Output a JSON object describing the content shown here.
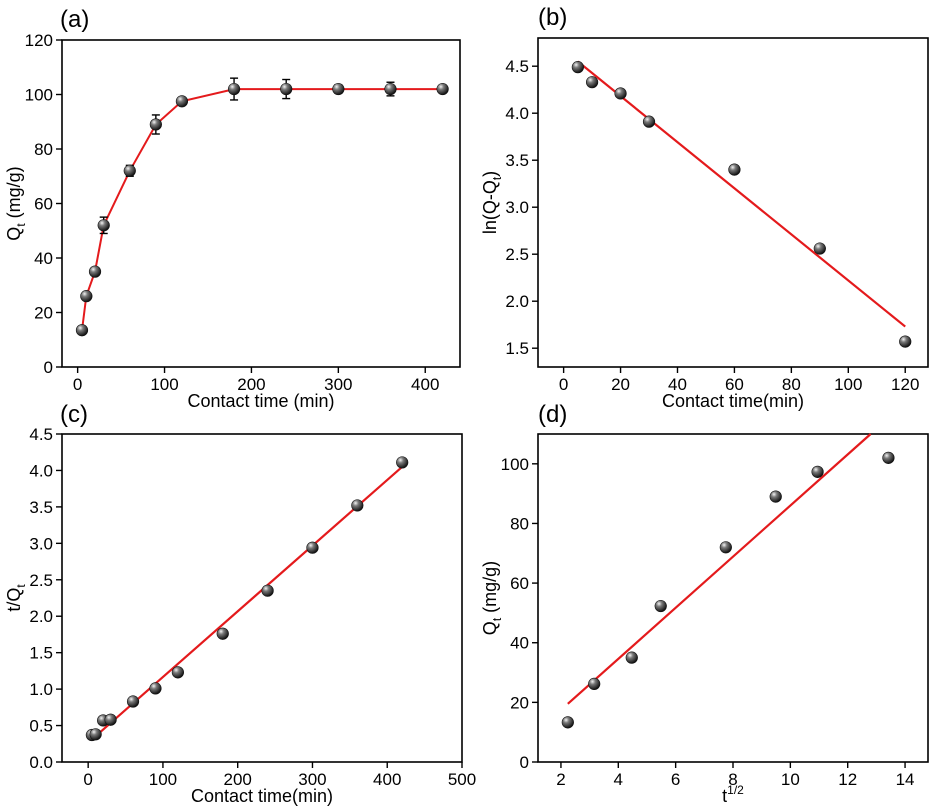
{
  "colors": {
    "fit_line": "#e41a1c",
    "marker": "#2a2a2a",
    "axes": "#000000"
  },
  "chart_data": [
    {
      "type": "scatter",
      "panel_label": "(a)",
      "xlabel": "Contact time (min)",
      "ylabel": "Q",
      "ylabel_sub": "t",
      "ylabel_suffix": " (mg/g)",
      "xlim": [
        -18,
        440
      ],
      "ylim": [
        0,
        120
      ],
      "xticks": [
        0,
        100,
        200,
        300,
        400
      ],
      "yticks": [
        0,
        20,
        40,
        60,
        80,
        100,
        120
      ],
      "marker_style": "sphere",
      "line_style": "connect",
      "points": [
        {
          "x": 5,
          "y": 13.5,
          "err": 1.0
        },
        {
          "x": 10,
          "y": 26.0,
          "err": 1.0
        },
        {
          "x": 20,
          "y": 35.0,
          "err": 1.0
        },
        {
          "x": 30,
          "y": 52.0,
          "err": 3.0
        },
        {
          "x": 60,
          "y": 72.0,
          "err": 2.0
        },
        {
          "x": 90,
          "y": 89.0,
          "err": 3.5
        },
        {
          "x": 120,
          "y": 97.5,
          "err": 1.0
        },
        {
          "x": 180,
          "y": 102.0,
          "err": 4.0
        },
        {
          "x": 240,
          "y": 102.0,
          "err": 3.5
        },
        {
          "x": 300,
          "y": 102.0,
          "err": 1.5
        },
        {
          "x": 360,
          "y": 102.0,
          "err": 2.5
        },
        {
          "x": 420,
          "y": 102.0,
          "err": 1.0
        }
      ]
    },
    {
      "type": "scatter",
      "panel_label": "(b)",
      "xlabel": "Contact time(min)",
      "ylabel": "ln(Q-Q",
      "ylabel_sub": "t",
      "ylabel_suffix": ")",
      "xlim": [
        -9,
        128
      ],
      "ylim": [
        1.3,
        4.8
      ],
      "xticks": [
        0,
        20,
        40,
        60,
        80,
        100,
        120
      ],
      "yticks": [
        1.5,
        2.0,
        2.5,
        3.0,
        3.5,
        4.0,
        4.5
      ],
      "yticks_labels": [
        "1.5",
        "2.0",
        "2.5",
        "3.0",
        "3.5",
        "4.0",
        "4.5"
      ],
      "marker_style": "sphere",
      "line_style": "fit",
      "fit": {
        "x": [
          5,
          120
        ],
        "y": [
          4.55,
          1.73
        ]
      },
      "points": [
        {
          "x": 5,
          "y": 4.49
        },
        {
          "x": 10,
          "y": 4.33
        },
        {
          "x": 20,
          "y": 4.21
        },
        {
          "x": 30,
          "y": 3.91
        },
        {
          "x": 60,
          "y": 3.4
        },
        {
          "x": 90,
          "y": 2.56
        },
        {
          "x": 120,
          "y": 1.57
        }
      ]
    },
    {
      "type": "scatter",
      "panel_label": "(c)",
      "xlabel": "Contact time(min)",
      "ylabel": "t/Q",
      "ylabel_sub": "t",
      "ylabel_suffix": "",
      "xlim": [
        -35,
        500
      ],
      "ylim": [
        0,
        4.5
      ],
      "xticks": [
        0,
        100,
        200,
        300,
        400,
        500
      ],
      "yticks": [
        0,
        0.5,
        1.0,
        1.5,
        2.0,
        2.5,
        3.0,
        3.5,
        4.0,
        4.5
      ],
      "yticks_labels": [
        "0.0",
        "0.5",
        "1.0",
        "1.5",
        "2.0",
        "2.5",
        "3.0",
        "3.5",
        "4.0",
        "4.5"
      ],
      "marker_style": "sphere",
      "line_style": "fit",
      "fit": {
        "x": [
          5,
          420
        ],
        "y": [
          0.31,
          4.05
        ]
      },
      "points": [
        {
          "x": 5,
          "y": 0.37
        },
        {
          "x": 10,
          "y": 0.38
        },
        {
          "x": 20,
          "y": 0.57
        },
        {
          "x": 30,
          "y": 0.58
        },
        {
          "x": 60,
          "y": 0.83
        },
        {
          "x": 90,
          "y": 1.01
        },
        {
          "x": 120,
          "y": 1.23
        },
        {
          "x": 180,
          "y": 1.76
        },
        {
          "x": 240,
          "y": 2.35
        },
        {
          "x": 300,
          "y": 2.94
        },
        {
          "x": 360,
          "y": 3.52
        },
        {
          "x": 420,
          "y": 4.11
        }
      ]
    },
    {
      "type": "scatter",
      "panel_label": "(d)",
      "xlabel": "t",
      "xlabel_sup": "1/2",
      "ylabel": "Q",
      "ylabel_sub": "t",
      "ylabel_suffix": " (mg/g)",
      "xlim": [
        1.2,
        14.8
      ],
      "ylim": [
        0,
        110
      ],
      "xticks": [
        2,
        4,
        6,
        8,
        10,
        12,
        14
      ],
      "yticks": [
        0,
        20,
        40,
        60,
        80,
        100
      ],
      "marker_style": "sphere",
      "line_style": "fit",
      "fit": {
        "x": [
          2.24,
          12.8
        ],
        "y": [
          19.5,
          110
        ]
      },
      "points": [
        {
          "x": 2.24,
          "y": 13.3
        },
        {
          "x": 3.16,
          "y": 26.2
        },
        {
          "x": 4.47,
          "y": 35.0
        },
        {
          "x": 5.48,
          "y": 52.3
        },
        {
          "x": 7.75,
          "y": 72.0
        },
        {
          "x": 9.49,
          "y": 89.0
        },
        {
          "x": 10.95,
          "y": 97.3
        },
        {
          "x": 13.42,
          "y": 102.0
        }
      ]
    }
  ]
}
